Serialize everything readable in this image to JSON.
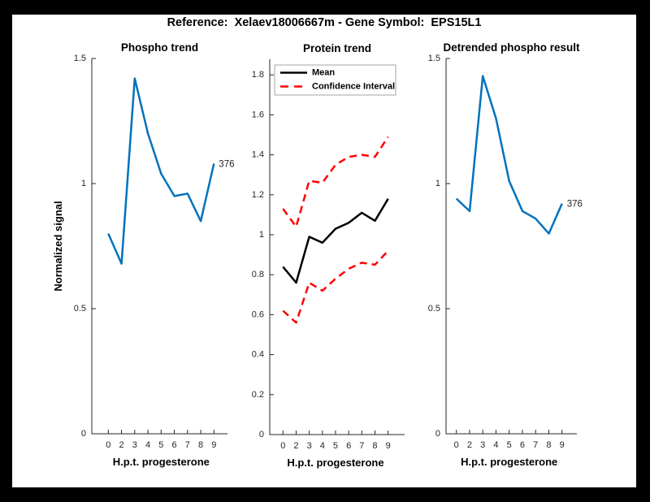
{
  "figure": {
    "title": "Reference:  Xelaev18006667m - Gene Symbol:  EPS15L1"
  },
  "colors": {
    "line_blue": "#0072BD",
    "line_red": "#FF0000",
    "line_black": "#000000",
    "axis": "#262626",
    "legend_border": "#a6a6a6",
    "frame": "#000000",
    "canvas": "#ffffff"
  },
  "chart_data": [
    {
      "type": "line",
      "title": "Phospho trend",
      "xlabel": "H.p.t. progesterone",
      "ylabel": "Normalized signal",
      "x_tick_labels": [
        "0",
        "2",
        "3",
        "4",
        "5",
        "6",
        "7",
        "8",
        "9"
      ],
      "y_ticks": [
        {
          "v": 0,
          "label": "0"
        },
        {
          "v": 0.5,
          "label": "0.5"
        },
        {
          "v": 1,
          "label": "1"
        },
        {
          "v": 1.5,
          "label": "1.5"
        }
      ],
      "ylim": [
        0,
        1.5
      ],
      "grid": false,
      "series": [
        {
          "name": "phospho-signal",
          "color": "#0072BD",
          "dash": false,
          "width": 2.5,
          "values": [
            0.8,
            0.68,
            1.42,
            1.2,
            1.04,
            0.95,
            0.96,
            0.85,
            1.08
          ]
        }
      ],
      "end_label": "376"
    },
    {
      "type": "line",
      "title": "Protein trend",
      "xlabel": "H.p.t. progesterone",
      "ylabel": "",
      "x_tick_labels": [
        "0",
        "2",
        "3",
        "4",
        "5",
        "6",
        "7",
        "8",
        "9"
      ],
      "y_ticks": [
        {
          "v": 0,
          "label": "0"
        },
        {
          "v": 0.2,
          "label": "0.2"
        },
        {
          "v": 0.4,
          "label": "0.4"
        },
        {
          "v": 0.6,
          "label": "0.6"
        },
        {
          "v": 0.8,
          "label": "0.8"
        },
        {
          "v": 1,
          "label": "1"
        },
        {
          "v": 1.2,
          "label": "1.2"
        },
        {
          "v": 1.4,
          "label": "1.4"
        },
        {
          "v": 1.6,
          "label": "1.6"
        },
        {
          "v": 1.8,
          "label": "1.8"
        }
      ],
      "ylim": [
        0,
        1.88
      ],
      "grid": false,
      "legend": {
        "position": "top-left",
        "items": [
          {
            "label": "Mean",
            "color": "#000000",
            "dash": false
          },
          {
            "label": "Confidence Interval",
            "color": "#FF0000",
            "dash": true
          }
        ]
      },
      "series": [
        {
          "name": "mean",
          "color": "#000000",
          "dash": false,
          "width": 2.5,
          "values": [
            0.84,
            0.76,
            0.99,
            0.96,
            1.03,
            1.06,
            1.11,
            1.07,
            1.18
          ]
        },
        {
          "name": "ci-upper",
          "color": "#FF0000",
          "dash": true,
          "width": 2.5,
          "values": [
            1.13,
            1.04,
            1.27,
            1.26,
            1.35,
            1.39,
            1.4,
            1.39,
            1.49
          ]
        },
        {
          "name": "ci-lower",
          "color": "#FF0000",
          "dash": true,
          "width": 2.5,
          "values": [
            0.62,
            0.56,
            0.76,
            0.72,
            0.78,
            0.83,
            0.86,
            0.85,
            0.92
          ]
        }
      ]
    },
    {
      "type": "line",
      "title": "Detrended phospho result",
      "xlabel": "H.p.t. progesterone",
      "ylabel": "",
      "x_tick_labels": [
        "0",
        "2",
        "3",
        "4",
        "5",
        "6",
        "7",
        "8",
        "9"
      ],
      "y_ticks": [
        {
          "v": 0,
          "label": "0"
        },
        {
          "v": 0.5,
          "label": "0.5"
        },
        {
          "v": 1,
          "label": "1"
        },
        {
          "v": 1.5,
          "label": "1.5"
        }
      ],
      "ylim": [
        0,
        1.5
      ],
      "grid": false,
      "series": [
        {
          "name": "detrended-signal",
          "color": "#0072BD",
          "dash": false,
          "width": 2.5,
          "values": [
            0.94,
            0.89,
            1.43,
            1.26,
            1.01,
            0.89,
            0.86,
            0.8,
            0.92
          ]
        }
      ],
      "end_label": "376"
    }
  ]
}
